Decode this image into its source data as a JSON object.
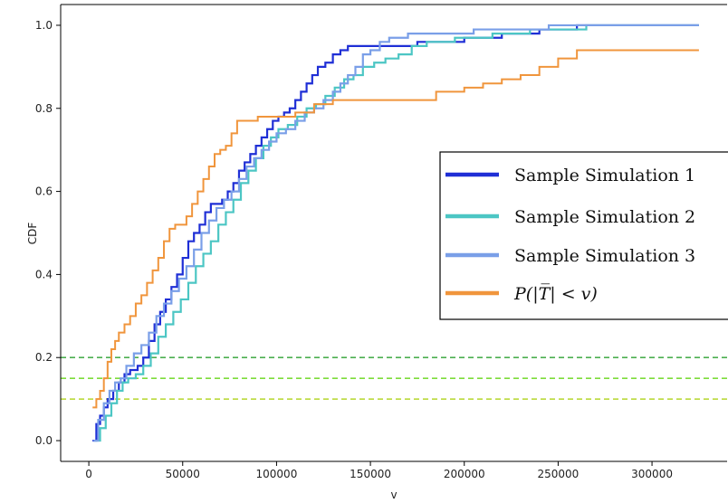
{
  "chart_data": {
    "type": "line",
    "title": "",
    "xlabel": "v",
    "ylabel": "CDF",
    "xlim": [
      -15000,
      340000
    ],
    "ylim": [
      -0.05,
      1.05
    ],
    "xticks": [
      0,
      50000,
      100000,
      150000,
      200000,
      250000,
      300000
    ],
    "xtick_labels": [
      "0",
      "50000",
      "100000",
      "150000",
      "200000",
      "250000",
      "300000"
    ],
    "yticks": [
      0.0,
      0.2,
      0.4,
      0.6,
      0.8,
      1.0
    ],
    "ytick_labels": [
      "0.0",
      "0.2",
      "0.4",
      "0.6",
      "0.8",
      "1.0"
    ],
    "grid": false,
    "legend_position": "center-right",
    "series": [
      {
        "name": "Sample Simulation 1",
        "color": "#1f2fd6",
        "width": 2.2,
        "points": [
          [
            2000,
            0.0
          ],
          [
            4000,
            0.04
          ],
          [
            6000,
            0.06
          ],
          [
            8000,
            0.08
          ],
          [
            10000,
            0.1
          ],
          [
            13000,
            0.12
          ],
          [
            16000,
            0.14
          ],
          [
            19000,
            0.16
          ],
          [
            22000,
            0.17
          ],
          [
            26000,
            0.18
          ],
          [
            29000,
            0.2
          ],
          [
            32000,
            0.24
          ],
          [
            35000,
            0.28
          ],
          [
            38000,
            0.31
          ],
          [
            41000,
            0.34
          ],
          [
            44000,
            0.37
          ],
          [
            47000,
            0.4
          ],
          [
            50000,
            0.44
          ],
          [
            53000,
            0.48
          ],
          [
            56000,
            0.5
          ],
          [
            59000,
            0.52
          ],
          [
            62000,
            0.55
          ],
          [
            65000,
            0.57
          ],
          [
            68000,
            0.57
          ],
          [
            71000,
            0.58
          ],
          [
            74000,
            0.6
          ],
          [
            77000,
            0.62
          ],
          [
            80000,
            0.65
          ],
          [
            83000,
            0.67
          ],
          [
            86000,
            0.69
          ],
          [
            89000,
            0.71
          ],
          [
            92000,
            0.73
          ],
          [
            95000,
            0.75
          ],
          [
            98000,
            0.77
          ],
          [
            101000,
            0.78
          ],
          [
            104000,
            0.79
          ],
          [
            107000,
            0.8
          ],
          [
            110000,
            0.82
          ],
          [
            113000,
            0.84
          ],
          [
            116000,
            0.86
          ],
          [
            119000,
            0.88
          ],
          [
            122000,
            0.9
          ],
          [
            126000,
            0.91
          ],
          [
            130000,
            0.93
          ],
          [
            134000,
            0.94
          ],
          [
            138000,
            0.95
          ],
          [
            150000,
            0.95
          ],
          [
            160000,
            0.95
          ],
          [
            175000,
            0.96
          ],
          [
            190000,
            0.96
          ],
          [
            200000,
            0.97
          ],
          [
            220000,
            0.98
          ],
          [
            240000,
            0.99
          ],
          [
            260000,
            1.0
          ],
          [
            325000,
            1.0
          ]
        ]
      },
      {
        "name": "Sample Simulation 2",
        "color": "#4cc6c4",
        "width": 2.2,
        "points": [
          [
            3000,
            0.0
          ],
          [
            6000,
            0.03
          ],
          [
            9000,
            0.06
          ],
          [
            12000,
            0.09
          ],
          [
            15000,
            0.12
          ],
          [
            18000,
            0.14
          ],
          [
            21000,
            0.15
          ],
          [
            25000,
            0.16
          ],
          [
            29000,
            0.18
          ],
          [
            33000,
            0.21
          ],
          [
            37000,
            0.25
          ],
          [
            41000,
            0.28
          ],
          [
            45000,
            0.31
          ],
          [
            49000,
            0.34
          ],
          [
            53000,
            0.38
          ],
          [
            57000,
            0.42
          ],
          [
            61000,
            0.45
          ],
          [
            65000,
            0.48
          ],
          [
            69000,
            0.52
          ],
          [
            73000,
            0.55
          ],
          [
            77000,
            0.58
          ],
          [
            81000,
            0.62
          ],
          [
            85000,
            0.65
          ],
          [
            89000,
            0.68
          ],
          [
            93000,
            0.71
          ],
          [
            97000,
            0.73
          ],
          [
            101000,
            0.75
          ],
          [
            106000,
            0.76
          ],
          [
            111000,
            0.78
          ],
          [
            116000,
            0.8
          ],
          [
            121000,
            0.81
          ],
          [
            126000,
            0.83
          ],
          [
            131000,
            0.85
          ],
          [
            136000,
            0.87
          ],
          [
            141000,
            0.88
          ],
          [
            146000,
            0.9
          ],
          [
            152000,
            0.91
          ],
          [
            158000,
            0.92
          ],
          [
            165000,
            0.93
          ],
          [
            172000,
            0.95
          ],
          [
            180000,
            0.96
          ],
          [
            195000,
            0.97
          ],
          [
            215000,
            0.98
          ],
          [
            235000,
            0.99
          ],
          [
            265000,
            1.0
          ],
          [
            325000,
            1.0
          ]
        ]
      },
      {
        "name": "Sample Simulation 3",
        "color": "#7a9fe8",
        "width": 2.2,
        "points": [
          [
            2500,
            0.0
          ],
          [
            5000,
            0.05
          ],
          [
            8000,
            0.09
          ],
          [
            11000,
            0.12
          ],
          [
            14000,
            0.14
          ],
          [
            17000,
            0.15
          ],
          [
            20000,
            0.18
          ],
          [
            24000,
            0.21
          ],
          [
            28000,
            0.23
          ],
          [
            32000,
            0.26
          ],
          [
            36000,
            0.3
          ],
          [
            40000,
            0.33
          ],
          [
            44000,
            0.36
          ],
          [
            48000,
            0.39
          ],
          [
            52000,
            0.42
          ],
          [
            56000,
            0.46
          ],
          [
            60000,
            0.5
          ],
          [
            64000,
            0.53
          ],
          [
            68000,
            0.56
          ],
          [
            72000,
            0.58
          ],
          [
            76000,
            0.6
          ],
          [
            80000,
            0.63
          ],
          [
            84000,
            0.66
          ],
          [
            88000,
            0.68
          ],
          [
            92000,
            0.7
          ],
          [
            96000,
            0.72
          ],
          [
            100000,
            0.74
          ],
          [
            105000,
            0.75
          ],
          [
            110000,
            0.77
          ],
          [
            115000,
            0.79
          ],
          [
            120000,
            0.8
          ],
          [
            125000,
            0.82
          ],
          [
            130000,
            0.84
          ],
          [
            134000,
            0.86
          ],
          [
            138000,
            0.88
          ],
          [
            142000,
            0.9
          ],
          [
            146000,
            0.93
          ],
          [
            150000,
            0.94
          ],
          [
            155000,
            0.96
          ],
          [
            160000,
            0.97
          ],
          [
            170000,
            0.98
          ],
          [
            190000,
            0.98
          ],
          [
            205000,
            0.99
          ],
          [
            225000,
            0.99
          ],
          [
            245000,
            1.0
          ],
          [
            325000,
            1.0
          ]
        ]
      },
      {
        "name": "P(|T̅| < v)",
        "color": "#f0953c",
        "width": 2.0,
        "points": [
          [
            2000,
            0.08
          ],
          [
            4000,
            0.1
          ],
          [
            6000,
            0.12
          ],
          [
            8000,
            0.15
          ],
          [
            10000,
            0.19
          ],
          [
            12000,
            0.22
          ],
          [
            14000,
            0.24
          ],
          [
            16000,
            0.26
          ],
          [
            19000,
            0.28
          ],
          [
            22000,
            0.3
          ],
          [
            25000,
            0.33
          ],
          [
            28000,
            0.35
          ],
          [
            31000,
            0.38
          ],
          [
            34000,
            0.41
          ],
          [
            37000,
            0.44
          ],
          [
            40000,
            0.48
          ],
          [
            43000,
            0.51
          ],
          [
            46000,
            0.52
          ],
          [
            49000,
            0.52
          ],
          [
            52000,
            0.54
          ],
          [
            55000,
            0.57
          ],
          [
            58000,
            0.6
          ],
          [
            61000,
            0.63
          ],
          [
            64000,
            0.66
          ],
          [
            67000,
            0.69
          ],
          [
            70000,
            0.7
          ],
          [
            73000,
            0.71
          ],
          [
            76000,
            0.74
          ],
          [
            79000,
            0.77
          ],
          [
            85000,
            0.77
          ],
          [
            90000,
            0.78
          ],
          [
            100000,
            0.78
          ],
          [
            110000,
            0.79
          ],
          [
            120000,
            0.81
          ],
          [
            130000,
            0.82
          ],
          [
            140000,
            0.82
          ],
          [
            180000,
            0.82
          ],
          [
            185000,
            0.84
          ],
          [
            200000,
            0.85
          ],
          [
            210000,
            0.86
          ],
          [
            220000,
            0.87
          ],
          [
            230000,
            0.88
          ],
          [
            240000,
            0.9
          ],
          [
            250000,
            0.92
          ],
          [
            260000,
            0.94
          ],
          [
            325000,
            0.94
          ]
        ]
      }
    ],
    "hlines": [
      {
        "y": 0.2,
        "color": "#4caf50"
      },
      {
        "y": 0.15,
        "color": "#7ddc3b"
      },
      {
        "y": 0.1,
        "color": "#b5d62d"
      }
    ]
  }
}
